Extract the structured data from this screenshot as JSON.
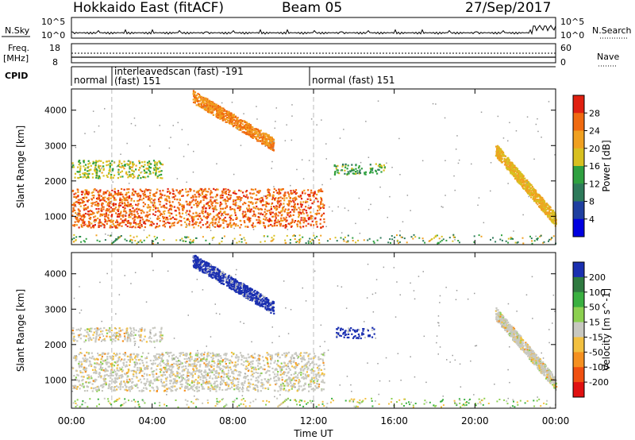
{
  "header": {
    "title": "Hokkaido East (fitACF)",
    "beam": "Beam 05",
    "date": "27/Sep/2017"
  },
  "top_panel": {
    "nsky_label": "N.Sky",
    "nsearch_label": "N.Search",
    "freq_label": "Freq.",
    "freq_unit": "[MHz]",
    "nave_label": "Nave",
    "cpid_label": "CPID",
    "nsky_ticks": [
      "10^5",
      "10^0"
    ],
    "nsearch_ticks": [
      "10^5",
      "10^0"
    ],
    "freq_ticks": [
      "18",
      "8"
    ],
    "nave_ticks": [
      "60",
      "0"
    ]
  },
  "cpid_segments": [
    {
      "label": "normal",
      "sublabel": ""
    },
    {
      "label": "interleavedscan (fast) -191",
      "sublabel": "(fast) 151"
    },
    {
      "label": "normal (fast) 151",
      "sublabel": ""
    }
  ],
  "x_axis": {
    "label": "Time UT",
    "ticks": [
      "00:00",
      "04:00",
      "08:00",
      "12:00",
      "16:00",
      "20:00",
      "00:00"
    ]
  },
  "chart_data": [
    {
      "type": "heatmap",
      "title": "",
      "ylabel": "Slant Range [km]",
      "xlabel": "Time UT",
      "y_ticks": [
        "1000",
        "2000",
        "3000",
        "4000"
      ],
      "ylim": [
        200,
        4600
      ],
      "xlim": [
        "00:00",
        "24:00"
      ],
      "colorbar": {
        "label": "Power [dB]",
        "ticks": [
          "4",
          "8",
          "12",
          "16",
          "20",
          "24",
          "28"
        ],
        "colors": [
          "#0000e0",
          "#1f3fa0",
          "#2e7a5a",
          "#2fa040",
          "#d8c020",
          "#f0a020",
          "#f06a10",
          "#e02010"
        ]
      },
      "features": [
        {
          "name": "main band",
          "time_start": 0.0,
          "time_end": 12.5,
          "range_km": [
            700,
            1800
          ],
          "power_db": 26
        },
        {
          "name": "upper band",
          "time_start": 0.0,
          "time_end": 4.5,
          "range_km": [
            2100,
            2600
          ],
          "power_db": 17
        },
        {
          "name": "rising streak",
          "time_start": 6.0,
          "time_end": 10.0,
          "range_km": [
            2900,
            4400
          ],
          "power_db": 24
        },
        {
          "name": "post-midday patch",
          "time_start": 13.0,
          "time_end": 15.5,
          "range_km": [
            2200,
            2500
          ],
          "power_db": 14
        },
        {
          "name": "evening streak",
          "time_start": 21.0,
          "time_end": 24.0,
          "range_km": [
            900,
            2900
          ],
          "power_db": 20
        }
      ]
    },
    {
      "type": "heatmap",
      "title": "",
      "ylabel": "Slant Range [km]",
      "xlabel": "Time UT",
      "y_ticks": [
        "1000",
        "2000",
        "3000",
        "4000"
      ],
      "ylim": [
        200,
        4600
      ],
      "xlim": [
        "00:00",
        "24:00"
      ],
      "colorbar": {
        "label": "Velocity [m s^-1]",
        "ticks": [
          "200",
          "100",
          "50",
          "15",
          "-15",
          "-50",
          "-100",
          "-200"
        ],
        "colors": [
          "#1a2fb0",
          "#2f7a40",
          "#3ab040",
          "#8cd050",
          "#c8c8c0",
          "#f2c040",
          "#f59020",
          "#f05010",
          "#e01010"
        ]
      },
      "features": [
        {
          "name": "ground scatter band",
          "time_start": 0.0,
          "time_end": 12.5,
          "range_km": [
            700,
            1800
          ],
          "velocity": 0
        },
        {
          "name": "upper band",
          "time_start": 0.0,
          "time_end": 4.5,
          "range_km": [
            2100,
            2500
          ],
          "velocity": 0
        },
        {
          "name": "negative-doppler streak",
          "time_start": 6.0,
          "time_end": 10.0,
          "range_km": [
            2900,
            4400
          ],
          "velocity": 180
        },
        {
          "name": "blue patch",
          "time_start": 13.0,
          "time_end": 15.0,
          "range_km": [
            2200,
            2500
          ],
          "velocity": 200
        },
        {
          "name": "evening streak",
          "time_start": 21.0,
          "time_end": 24.0,
          "range_km": [
            900,
            2900
          ],
          "velocity": 0
        }
      ]
    }
  ]
}
